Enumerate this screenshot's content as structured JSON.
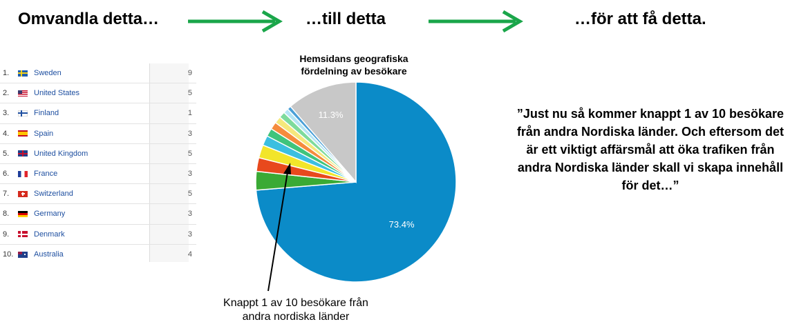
{
  "headings": {
    "step1": "Omvandla detta…",
    "step2": "…till detta",
    "step3": "…för att få detta."
  },
  "arrow_color": "#1aa64a",
  "table": {
    "link_color": "#1e4fa0",
    "rows": [
      {
        "rank": "1.",
        "country": "Sweden",
        "flag": "flag-sweden-icon",
        "cut": "9"
      },
      {
        "rank": "2.",
        "country": "United States",
        "flag": "flag-usa-icon",
        "cut": "5"
      },
      {
        "rank": "3.",
        "country": "Finland",
        "flag": "flag-finland-icon",
        "cut": "1"
      },
      {
        "rank": "4.",
        "country": "Spain",
        "flag": "flag-spain-icon",
        "cut": "3"
      },
      {
        "rank": "5.",
        "country": "United Kingdom",
        "flag": "flag-uk-icon",
        "cut": "5"
      },
      {
        "rank": "6.",
        "country": "France",
        "flag": "flag-france-icon",
        "cut": "3"
      },
      {
        "rank": "7.",
        "country": "Switzerland",
        "flag": "flag-switzerland-icon",
        "cut": "5"
      },
      {
        "rank": "8.",
        "country": "Germany",
        "flag": "flag-germany-icon",
        "cut": "3"
      },
      {
        "rank": "9.",
        "country": "Denmark",
        "flag": "flag-denmark-icon",
        "cut": "3"
      },
      {
        "rank": "10.",
        "country": "Australia",
        "flag": "flag-australia-icon",
        "cut": "4"
      }
    ]
  },
  "chart_data": {
    "type": "pie",
    "title": "Hemsidans geografiska fördelning av besökare",
    "slices": [
      {
        "value": 73.4,
        "color": "#0b8bc8",
        "label": "73.4%"
      },
      {
        "value": 3.0,
        "color": "#3aaa35",
        "label": ""
      },
      {
        "value": 2.2,
        "color": "#e8491d",
        "label": ""
      },
      {
        "value": 2.1,
        "color": "#f2e52a",
        "label": ""
      },
      {
        "value": 1.6,
        "color": "#3bbfe0",
        "label": ""
      },
      {
        "value": 1.3,
        "color": "#3fc47c",
        "label": ""
      },
      {
        "value": 1.2,
        "color": "#f58b3c",
        "label": ""
      },
      {
        "value": 1.1,
        "color": "#f5e87c",
        "label": ""
      },
      {
        "value": 1.0,
        "color": "#7edb9c",
        "label": ""
      },
      {
        "value": 0.8,
        "color": "#b5e5f5",
        "label": ""
      },
      {
        "value": 0.6,
        "color": "#4aa0d8",
        "label": ""
      },
      {
        "value": 11.3,
        "color": "#c8c8c8",
        "label": "11.3%"
      }
    ]
  },
  "annotation": "Knappt 1 av 10 besökare från andra nordiska länder",
  "quote": "”Just nu så kommer knappt 1 av 10 besökare från andra Nordiska länder. Och eftersom det är ett viktigt affärsmål att öka trafiken från andra Nordiska länder skall vi skapa innehåll för det…”"
}
